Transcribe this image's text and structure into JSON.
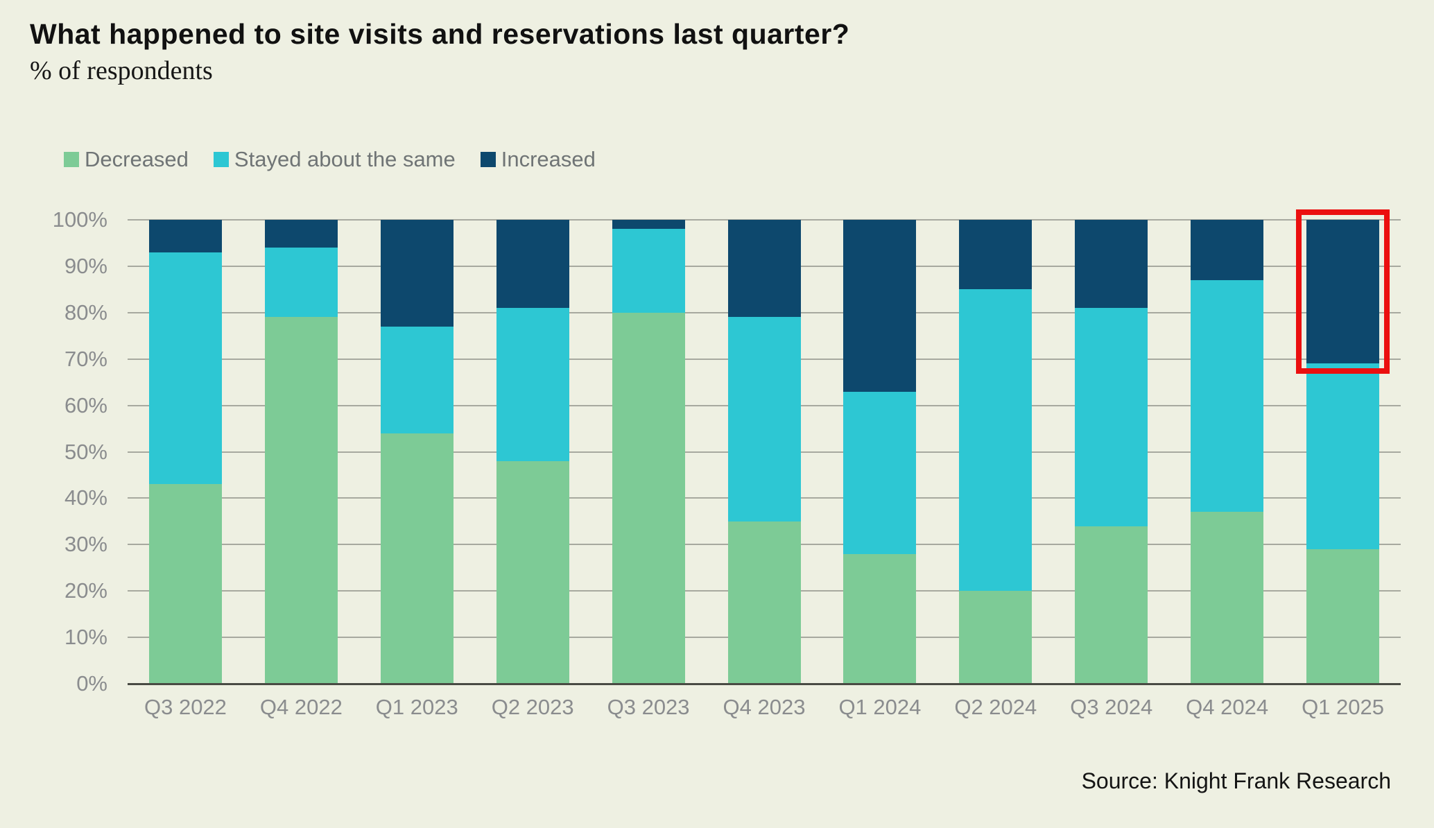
{
  "header": {
    "title": "What happened to site visits and reservations last quarter?",
    "subtitle": "% of respondents"
  },
  "legend": [
    {
      "label": "Decreased",
      "color": "#7dcb96"
    },
    {
      "label": "Stayed about the same",
      "color": "#2dc7d3"
    },
    {
      "label": "Increased",
      "color": "#0d486d"
    }
  ],
  "source": "Source: Knight Frank Research",
  "colors": {
    "background": "#eef0e2",
    "gridline": "#a7a99f",
    "axis_line": "#494b43",
    "tick_text": "#8a8c8e",
    "legend_text": "#6f7475",
    "highlight": "#eb0f0f"
  },
  "chart_data": {
    "type": "bar",
    "stacked": true,
    "title": "What happened to site visits and reservations last quarter?",
    "ylabel": "% of respondents",
    "ylim": [
      0,
      100
    ],
    "grid": true,
    "legend_position": "top-left",
    "categories": [
      "Q3 2022",
      "Q4 2022",
      "Q1 2023",
      "Q2 2023",
      "Q3 2023",
      "Q4 2023",
      "Q1 2024",
      "Q2 2024",
      "Q3 2024",
      "Q4 2024",
      "Q1 2025"
    ],
    "series": [
      {
        "name": "Decreased",
        "color": "#7dcb96",
        "values": [
          43,
          79,
          54,
          48,
          80,
          35,
          28,
          20,
          34,
          37,
          29
        ]
      },
      {
        "name": "Stayed about the same",
        "color": "#2dc7d3",
        "values": [
          50,
          15,
          23,
          33,
          18,
          44,
          35,
          65,
          47,
          50,
          40
        ]
      },
      {
        "name": "Increased",
        "color": "#0d486d",
        "values": [
          7,
          6,
          23,
          19,
          2,
          21,
          37,
          15,
          19,
          13,
          31
        ]
      }
    ],
    "y_ticks": [
      "0%",
      "10%",
      "20%",
      "30%",
      "40%",
      "50%",
      "60%",
      "70%",
      "80%",
      "90%",
      "100%"
    ],
    "highlight": {
      "category": "Q1 2025",
      "series": "Increased",
      "note": "red outline around segment"
    }
  }
}
